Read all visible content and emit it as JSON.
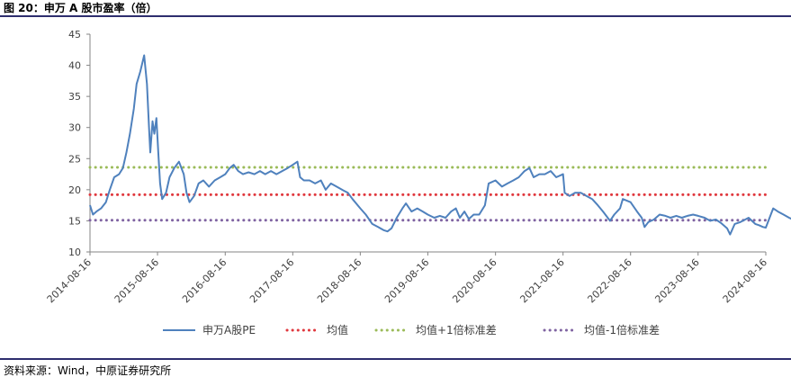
{
  "figure": {
    "title": "图 20：申万 A 股市盈率（倍）",
    "source": "资料来源：Wind，中原证券研究所"
  },
  "chart_data": {
    "type": "line",
    "ylim": [
      10,
      45
    ],
    "y_ticks": [
      10,
      15,
      20,
      25,
      30,
      35,
      40,
      45
    ],
    "x_tick_labels": [
      "2014-08-16",
      "2015-08-16",
      "2016-08-16",
      "2017-08-16",
      "2018-08-16",
      "2019-08-16",
      "2020-08-16",
      "2021-08-16",
      "2022-08-16",
      "2023-08-16",
      "2024-08-16"
    ],
    "grid": false,
    "legend_position": "bottom",
    "series": [
      {
        "name": "申万A股PE",
        "color": "#4f81bd",
        "style": "solid",
        "points": [
          [
            "2014-08-16",
            17.5
          ],
          [
            "2014-09-01",
            16.0
          ],
          [
            "2014-09-20",
            16.5
          ],
          [
            "2014-10-15",
            17.0
          ],
          [
            "2014-11-10",
            18.0
          ],
          [
            "2014-12-01",
            20.0
          ],
          [
            "2014-12-25",
            22.0
          ],
          [
            "2015-01-20",
            22.5
          ],
          [
            "2015-02-10",
            23.5
          ],
          [
            "2015-03-01",
            26.0
          ],
          [
            "2015-03-20",
            29.0
          ],
          [
            "2015-04-10",
            33.0
          ],
          [
            "2015-04-25",
            37.0
          ],
          [
            "2015-05-15",
            39.0
          ],
          [
            "2015-06-05",
            41.6
          ],
          [
            "2015-06-20",
            37.0
          ],
          [
            "2015-07-01",
            30.0
          ],
          [
            "2015-07-08",
            26.0
          ],
          [
            "2015-07-20",
            31.0
          ],
          [
            "2015-07-30",
            29.0
          ],
          [
            "2015-08-10",
            31.5
          ],
          [
            "2015-08-20",
            26.0
          ],
          [
            "2015-08-30",
            21.0
          ],
          [
            "2015-09-10",
            18.5
          ],
          [
            "2015-10-01",
            19.5
          ],
          [
            "2015-10-20",
            22.0
          ],
          [
            "2015-11-15",
            23.5
          ],
          [
            "2015-12-10",
            24.5
          ],
          [
            "2016-01-05",
            22.5
          ],
          [
            "2016-01-20",
            19.5
          ],
          [
            "2016-02-05",
            18.0
          ],
          [
            "2016-03-01",
            19.0
          ],
          [
            "2016-03-25",
            21.0
          ],
          [
            "2016-04-20",
            21.5
          ],
          [
            "2016-05-20",
            20.5
          ],
          [
            "2016-06-20",
            21.5
          ],
          [
            "2016-07-20",
            22.0
          ],
          [
            "2016-08-16",
            22.5
          ],
          [
            "2016-09-10",
            23.5
          ],
          [
            "2016-10-01",
            24.0
          ],
          [
            "2016-10-25",
            23.0
          ],
          [
            "2016-11-20",
            22.5
          ],
          [
            "2016-12-20",
            22.8
          ],
          [
            "2017-01-20",
            22.5
          ],
          [
            "2017-02-20",
            23.0
          ],
          [
            "2017-03-20",
            22.5
          ],
          [
            "2017-04-20",
            23.0
          ],
          [
            "2017-05-20",
            22.5
          ],
          [
            "2017-06-20",
            23.0
          ],
          [
            "2017-07-20",
            23.5
          ],
          [
            "2017-08-16",
            24.0
          ],
          [
            "2017-09-10",
            24.5
          ],
          [
            "2017-09-25",
            22.0
          ],
          [
            "2017-10-15",
            21.5
          ],
          [
            "2017-11-15",
            21.5
          ],
          [
            "2017-12-15",
            21.0
          ],
          [
            "2018-01-15",
            21.5
          ],
          [
            "2018-02-10",
            20.0
          ],
          [
            "2018-03-10",
            21.0
          ],
          [
            "2018-04-10",
            20.5
          ],
          [
            "2018-05-10",
            20.0
          ],
          [
            "2018-06-10",
            19.5
          ],
          [
            "2018-07-05",
            18.5
          ],
          [
            "2018-08-16",
            17.0
          ],
          [
            "2018-09-15",
            16.0
          ],
          [
            "2018-10-20",
            14.5
          ],
          [
            "2018-11-20",
            14.0
          ],
          [
            "2018-12-20",
            13.5
          ],
          [
            "2019-01-10",
            13.3
          ],
          [
            "2019-02-01",
            13.8
          ],
          [
            "2019-03-01",
            15.5
          ],
          [
            "2019-04-01",
            17.0
          ],
          [
            "2019-04-20",
            17.8
          ],
          [
            "2019-05-20",
            16.5
          ],
          [
            "2019-06-20",
            17.0
          ],
          [
            "2019-07-20",
            16.5
          ],
          [
            "2019-08-16",
            16.0
          ],
          [
            "2019-09-20",
            15.5
          ],
          [
            "2019-10-20",
            15.8
          ],
          [
            "2019-11-20",
            15.5
          ],
          [
            "2019-12-20",
            16.5
          ],
          [
            "2020-01-15",
            17.0
          ],
          [
            "2020-02-05",
            15.5
          ],
          [
            "2020-03-01",
            16.5
          ],
          [
            "2020-03-25",
            15.3
          ],
          [
            "2020-04-20",
            16.0
          ],
          [
            "2020-05-20",
            16.0
          ],
          [
            "2020-06-20",
            17.5
          ],
          [
            "2020-07-10",
            21.0
          ],
          [
            "2020-08-16",
            21.5
          ],
          [
            "2020-09-20",
            20.5
          ],
          [
            "2020-10-20",
            21.0
          ],
          [
            "2020-11-20",
            21.5
          ],
          [
            "2020-12-20",
            22.0
          ],
          [
            "2021-01-20",
            23.0
          ],
          [
            "2021-02-15",
            23.5
          ],
          [
            "2021-03-10",
            22.0
          ],
          [
            "2021-04-10",
            22.5
          ],
          [
            "2021-05-10",
            22.5
          ],
          [
            "2021-06-10",
            23.0
          ],
          [
            "2021-07-10",
            22.0
          ],
          [
            "2021-08-16",
            22.5
          ],
          [
            "2021-08-25",
            19.5
          ],
          [
            "2021-09-20",
            19.0
          ],
          [
            "2021-10-20",
            19.5
          ],
          [
            "2021-11-20",
            19.5
          ],
          [
            "2021-12-20",
            19.0
          ],
          [
            "2022-01-20",
            18.5
          ],
          [
            "2022-02-20",
            17.5
          ],
          [
            "2022-03-20",
            16.5
          ],
          [
            "2022-04-27",
            15.0
          ],
          [
            "2022-05-20",
            16.0
          ],
          [
            "2022-06-20",
            17.0
          ],
          [
            "2022-07-05",
            18.5
          ],
          [
            "2022-08-16",
            18.0
          ],
          [
            "2022-09-20",
            16.5
          ],
          [
            "2022-10-15",
            15.5
          ],
          [
            "2022-10-31",
            14.0
          ],
          [
            "2022-11-20",
            14.8
          ],
          [
            "2022-12-20",
            15.2
          ],
          [
            "2023-01-20",
            16.0
          ],
          [
            "2023-02-20",
            15.8
          ],
          [
            "2023-03-20",
            15.5
          ],
          [
            "2023-04-20",
            15.8
          ],
          [
            "2023-05-20",
            15.5
          ],
          [
            "2023-06-20",
            15.8
          ],
          [
            "2023-07-20",
            16.0
          ],
          [
            "2023-08-16",
            15.8
          ],
          [
            "2023-09-20",
            15.5
          ],
          [
            "2023-10-20",
            15.0
          ],
          [
            "2023-11-20",
            15.2
          ],
          [
            "2023-12-20",
            14.6
          ],
          [
            "2024-01-20",
            13.8
          ],
          [
            "2024-02-05",
            12.8
          ],
          [
            "2024-03-01",
            14.5
          ],
          [
            "2024-04-01",
            14.8
          ],
          [
            "2024-05-15",
            15.5
          ],
          [
            "2024-06-20",
            14.5
          ],
          [
            "2024-07-10",
            14.3
          ],
          [
            "2024-08-01",
            14.0
          ],
          [
            "2024-08-16",
            13.9
          ],
          [
            "2024-09-25",
            17.0
          ],
          [
            "2024-10-20",
            16.5
          ],
          [
            "2024-11-20",
            16.0
          ],
          [
            "2024-12-20",
            15.5
          ],
          [
            "2025-01-10",
            15.2
          ],
          [
            "2025-01-25",
            15.5
          ]
        ]
      },
      {
        "name": "均值",
        "color": "#e0383e",
        "style": "dotted",
        "value": 19.2
      },
      {
        "name": "均值+1倍标准差",
        "color": "#9bbb59",
        "style": "dotted",
        "value": 23.6
      },
      {
        "name": "均值-1倍标准差",
        "color": "#8064a2",
        "style": "dotted",
        "value": 15.1
      }
    ]
  }
}
